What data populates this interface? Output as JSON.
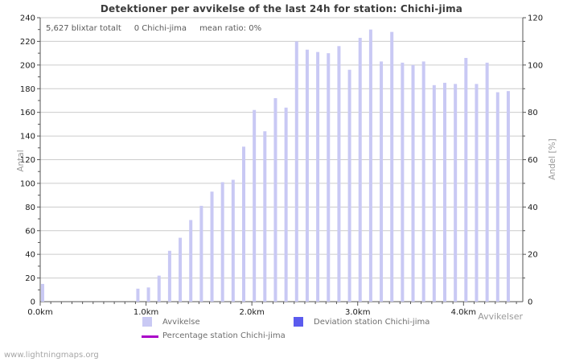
{
  "title": "Detektioner per avvikelse of the last 24h for station: Chichi-jima",
  "stats": {
    "total": "5,627 blixtar totalt",
    "station": "0 Chichi-jima",
    "mean_ratio": "mean ratio: 0%"
  },
  "axes": {
    "left_title": "Antal",
    "right_title": "Andel [%]",
    "x_title": "Avvikelser",
    "x_tick_suffix": "km"
  },
  "legend": [
    {
      "label": "Avvikelse",
      "type": "square",
      "color": "#c9c9f4"
    },
    {
      "label": "Deviation station Chichi-jima",
      "type": "square",
      "color": "#5b5bee"
    },
    {
      "label": "Percentage station Chichi-jima",
      "type": "line",
      "color": "#aa00c8"
    }
  ],
  "watermark": "www.lightningmaps.org",
  "colors": {
    "bar": "#c9c9f4",
    "deviation": "#5b5bee",
    "percentage": "#aa00c8",
    "grid": "#cccccc",
    "axis": "#555555",
    "tick_label": "#1a1a1a"
  },
  "chart_data": {
    "type": "bar",
    "series_name": "Avvikelse",
    "x": [
      0.0,
      0.9,
      1.0,
      1.1,
      1.2,
      1.3,
      1.4,
      1.5,
      1.6,
      1.7,
      1.8,
      1.9,
      2.0,
      2.1,
      2.2,
      2.3,
      2.4,
      2.5,
      2.6,
      2.7,
      2.8,
      2.9,
      3.0,
      3.1,
      3.2,
      3.3,
      3.4,
      3.5,
      3.6,
      3.7,
      3.8,
      3.9,
      4.0,
      4.1,
      4.2,
      4.3,
      4.4
    ],
    "values": [
      15,
      11,
      12,
      22,
      43,
      54,
      69,
      81,
      93,
      101,
      103,
      131,
      162,
      144,
      172,
      164,
      220,
      213,
      211,
      210,
      216,
      196,
      223,
      230,
      203,
      228,
      202,
      200,
      203,
      183,
      185,
      184,
      206,
      184,
      202,
      177,
      178
    ],
    "title": "Detektioner per avvikelse of the last 24h for station: Chichi-jima",
    "xlabel": "Avvikelser",
    "ylabel_left": "Antal",
    "ylabel_right": "Andel [%]",
    "xlim": [
      0,
      4.56
    ],
    "ylim_left": [
      0,
      240
    ],
    "ylim_right": [
      0,
      120
    ],
    "left_tick_step": 20,
    "right_tick_step": 20,
    "x_minor_step": 0.1,
    "x_labeled_ticks": [
      0.0,
      1.0,
      2.0,
      3.0,
      4.0
    ],
    "grid": true,
    "legend_position": "bottom"
  }
}
